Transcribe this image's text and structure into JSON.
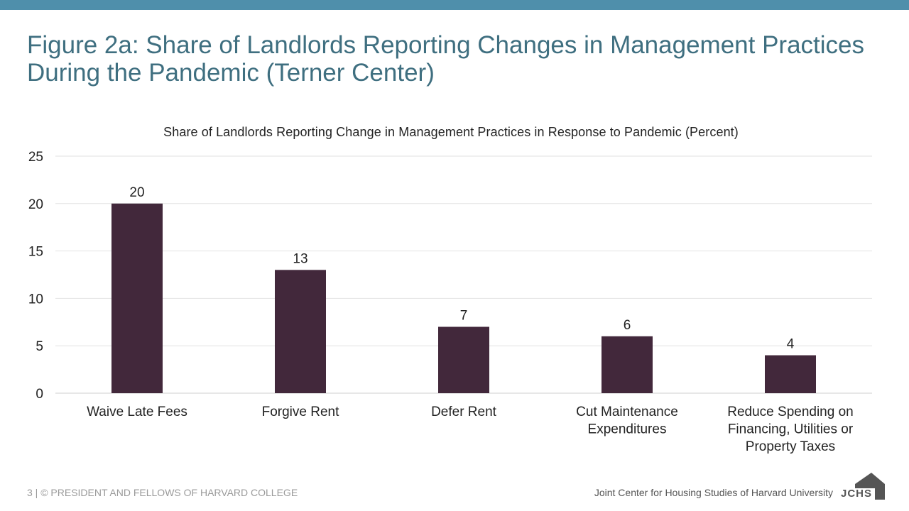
{
  "slide": {
    "title": "Figure 2a: Share of Landlords Reporting Changes in Management Practices During the Pandemic (Terner Center)"
  },
  "footer": {
    "left": "3 | © PRESIDENT AND FELLOWS OF HARVARD COLLEGE",
    "right": "Joint Center for Housing Studies of Harvard University",
    "logo_text": "JCHS"
  },
  "colors": {
    "bar": "#42283b",
    "accent": "#4f8fab",
    "title": "#3f6f80"
  },
  "chart_data": {
    "type": "bar",
    "title": "Share of Landlords  Reporting Change in Management Practices in Response to Pandemic (Percent)",
    "categories": [
      [
        "Waive Late Fees"
      ],
      [
        "Forgive Rent"
      ],
      [
        "Defer Rent"
      ],
      [
        "Cut Maintenance",
        "Expenditures"
      ],
      [
        "Reduce Spending on",
        "Financing, Utilities or",
        "Property Taxes"
      ]
    ],
    "values": [
      20,
      13,
      7,
      6,
      4
    ],
    "data_labels": [
      "20",
      "13",
      "7",
      "6",
      "4"
    ],
    "ylim": [
      0,
      25
    ],
    "yticks": [
      0,
      5,
      10,
      15,
      20,
      25
    ],
    "grid": true,
    "legend": "none"
  }
}
